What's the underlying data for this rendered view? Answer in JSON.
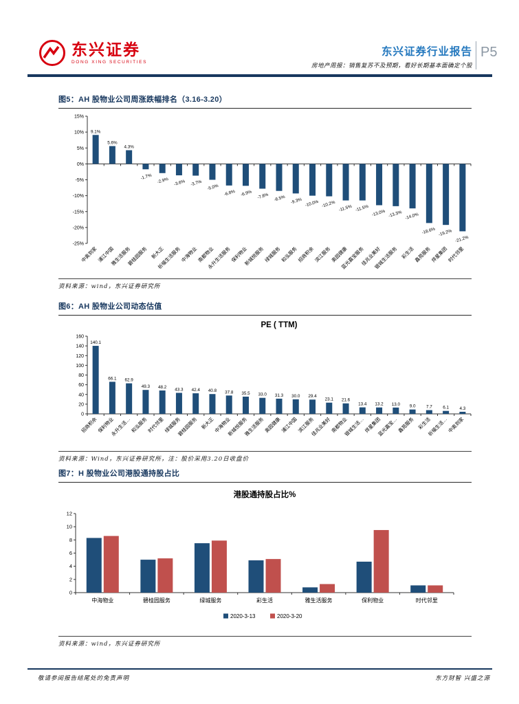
{
  "header": {
    "logo_cn": "东兴证券",
    "logo_en": "DONG XING SECURITIES",
    "report_type": "东兴证券行业报告",
    "report_subtitle": "房地产周报：销售复苏不及预期，看好长期基本面确定个股",
    "page_number": "P5"
  },
  "figures": [
    {
      "caption": "图5：AH 股物业公司周涨跌幅排名（3.16-3.20）",
      "source": "资料来源：wind，东兴证券研究所",
      "chart_data": {
        "type": "bar",
        "title": "",
        "categories": [
          "中奥到家",
          "浦江中国",
          "雅生活服务",
          "碧桂园服务",
          "新大正",
          "祈福生活服务",
          "中海物业",
          "南都物业",
          "永升生活服务",
          "保利物业",
          "新城悦服务",
          "绿城服务",
          "和泓服务",
          "招商积余",
          "滨江服务",
          "奥园健康",
          "蓝光嘉宝服务",
          "佳兆业美好",
          "银城生活服务",
          "彩生活",
          "鑫苑服务",
          "烨星集团",
          "时代邻里"
        ],
        "values": [
          9.1,
          5.6,
          4.3,
          -1.7,
          -2.9,
          -3.6,
          -3.7,
          -5.0,
          -6.8,
          -6.9,
          -7.8,
          -8.5,
          -9.3,
          -10.0,
          -10.2,
          -11.5,
          -11.5,
          -13.0,
          -13.3,
          -14.0,
          -18.6,
          -19.2,
          -21.2
        ],
        "value_labels": [
          "9.1%",
          "5.6%",
          "4.3%",
          "-1.7%",
          "-2.9%",
          "-3.6%",
          "-3.7%",
          "-5.0%",
          "-6.8%",
          "-6.9%",
          "-7.8%",
          "-8.5%",
          "-9.3%",
          "-10.0%",
          "-10.2%",
          "-11.5%",
          "-11.5%",
          "-13.0%",
          "-13.3%",
          "-14.0%",
          "-18.6%",
          "-19.2%",
          "-21.2%"
        ],
        "ylim": [
          -25,
          15
        ],
        "yticks": [
          15,
          10,
          5,
          0,
          -5,
          -10,
          -15,
          -20,
          -25
        ],
        "ytick_labels": [
          "15%",
          "10%",
          "5%",
          "0%",
          "-5%",
          "-10%",
          "-15%",
          "-20%",
          "-25%"
        ],
        "bar_color": "#1F4E79",
        "grid": false,
        "xlabel": "",
        "ylabel": ""
      }
    },
    {
      "caption": "图6：AH 股物业公司动态估值",
      "source": "资料来源：Wind，东兴证券研究所，注：股价采用3.20日收盘价",
      "chart_data": {
        "type": "bar",
        "title": "PE ( TTM)",
        "categories": [
          "招商积余",
          "保利物业",
          "永升生活…",
          "和泓服务",
          "时代邻里",
          "绿城服务",
          "碧桂园服务",
          "新大正",
          "中海物业",
          "新城悦服务",
          "雅生活服务",
          "奥园健康",
          "浦江中国",
          "滨江服务",
          "佳兆业美好",
          "南都物业",
          "银城生活…",
          "烨星集团",
          "蓝光嘉宝…",
          "鑫苑服务",
          "彩生活",
          "祈福生活…",
          "中奥到家"
        ],
        "values": [
          140.1,
          66.1,
          62.9,
          49.3,
          48.2,
          43.3,
          42.4,
          40.8,
          37.8,
          35.5,
          33.0,
          31.3,
          30.0,
          29.4,
          23.1,
          21.6,
          13.4,
          13.2,
          13.0,
          9.0,
          7.7,
          6.1,
          4.3
        ],
        "value_labels": [
          "140.1",
          "66.1",
          "62.9",
          "49.3",
          "48.2",
          "43.3",
          "42.4",
          "40.8",
          "37.8",
          "35.5",
          "33.0",
          "31.3",
          "30.0",
          "29.4",
          "23.1",
          "21.6",
          "13.4",
          "13.2",
          "13.0",
          "9.0",
          "7.7",
          "6.1",
          "4.3"
        ],
        "ylim": [
          0,
          160
        ],
        "yticks": [
          160,
          140,
          120,
          100,
          80,
          60,
          40,
          20,
          0
        ],
        "ytick_labels": [
          "160",
          "140",
          "120",
          "100",
          "80",
          "60",
          "40",
          "20",
          "0"
        ],
        "bar_color": "#1F4E79",
        "grid": false,
        "xlabel": "",
        "ylabel": ""
      }
    },
    {
      "caption": "图7：H 股物业公司港股通持股占比",
      "source": "资料来源：wind，东兴证券研究所",
      "chart_data": {
        "type": "bar",
        "title": "港股通持股占比%",
        "categories": [
          "中海物业",
          "碧桂园服务",
          "绿城服务",
          "彩生活",
          "雅生活服务",
          "保利物业",
          "时代邻里"
        ],
        "series": [
          {
            "name": "2020-3-13",
            "color": "#1F4E79",
            "values": [
              8.3,
              5.0,
              7.5,
              4.9,
              0.8,
              4.7,
              1.1
            ]
          },
          {
            "name": "2020-3-20",
            "color": "#C0504D",
            "values": [
              8.6,
              5.2,
              7.9,
              5.1,
              1.3,
              9.5,
              1.1
            ]
          }
        ],
        "ylim": [
          0,
          12
        ],
        "yticks": [
          12,
          10,
          8,
          6,
          4,
          2,
          0
        ],
        "ytick_labels": [
          "12",
          "10",
          "8",
          "6",
          "4",
          "2",
          "0"
        ],
        "legend_position": "bottom",
        "grid": false,
        "xlabel": "",
        "ylabel": ""
      }
    }
  ],
  "footer": {
    "left": "敬请参阅报告结尾处的免责声明",
    "right": "东方财智 兴盛之源"
  },
  "colors": {
    "bar_navy": "#1F4E79",
    "bar_red": "#C0504D",
    "caption_navy": "#17375E",
    "header_blue": "#2478BE",
    "logo_red": "#D7000F"
  }
}
